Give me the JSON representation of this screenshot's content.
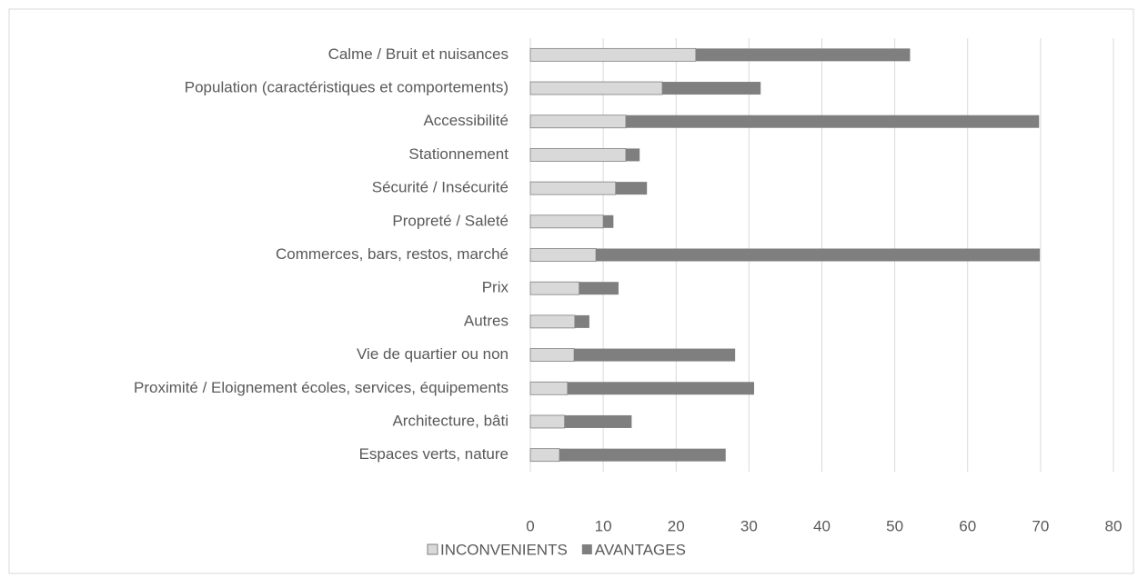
{
  "chart_data": {
    "type": "stacked_hbar",
    "categories": [
      "Calme / Bruit et nuisances",
      "Population (caractéristiques et comportements)",
      "Accessibilité",
      "Stationnement",
      "Sécurité / Insécurité",
      "Propreté / Saleté",
      "Commerces, bars, restos, marché",
      "Prix",
      "Autres",
      "Vie de quartier ou non",
      "Proximité / Eloignement écoles, services, équipements",
      "Architecture, bâti",
      "Espaces verts, nature"
    ],
    "series": [
      {
        "name": "INCONVENIENTS",
        "color": "#d9d9d9",
        "values": [
          22.7,
          18.1,
          13.1,
          13.1,
          11.7,
          10.0,
          9.0,
          6.7,
          6.1,
          6.0,
          5.1,
          4.7,
          4.0
        ]
      },
      {
        "name": "AVANTAGES",
        "color": "#7f7f7f",
        "values": [
          29.4,
          13.5,
          56.7,
          1.9,
          4.3,
          1.4,
          60.9,
          5.4,
          2.0,
          22.1,
          25.6,
          9.2,
          22.8
        ]
      }
    ],
    "xlim": [
      0,
      80
    ],
    "xticks": [
      0,
      10,
      20,
      30,
      40,
      50,
      60,
      70,
      80
    ],
    "grid": true,
    "legend": "bottom"
  }
}
